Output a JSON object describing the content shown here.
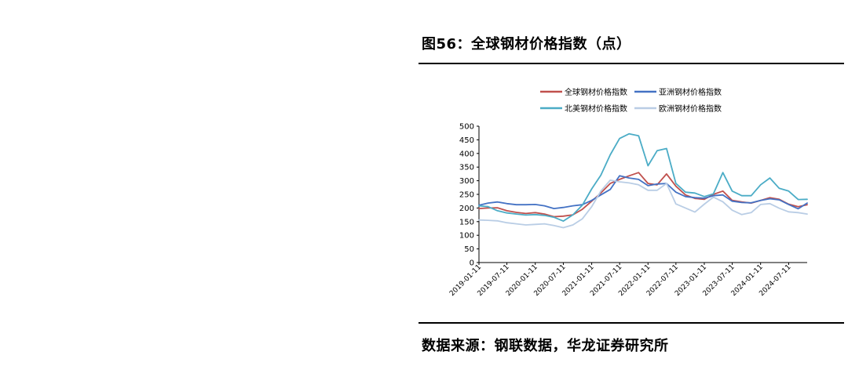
{
  "figure": {
    "title": "图56：全球钢材价格指数（点）",
    "source": "数据来源：钢联数据，华龙证券研究所"
  },
  "chart_data": {
    "type": "line",
    "title": "",
    "xlabel": "",
    "ylabel": "",
    "ylim": [
      0,
      500
    ],
    "yticks": [
      0,
      50,
      100,
      150,
      200,
      250,
      300,
      350,
      400,
      450,
      500
    ],
    "xlim": [
      "2019-01-11",
      "2024-11-08"
    ],
    "xticks": [
      "2019-01-11",
      "2019-07-11",
      "2020-01-11",
      "2020-07-11",
      "2021-01-11",
      "2021-07-11",
      "2022-01-11",
      "2022-07-11",
      "2023-01-11",
      "2023-07-11",
      "2024-01-11",
      "2024-07-11"
    ],
    "grid": false,
    "legend_position": "top",
    "x": [
      "2019-01-11",
      "2019-03-11",
      "2019-05-11",
      "2019-07-11",
      "2019-09-11",
      "2019-11-11",
      "2020-01-11",
      "2020-03-11",
      "2020-05-11",
      "2020-07-11",
      "2020-09-11",
      "2020-11-11",
      "2021-01-11",
      "2021-03-11",
      "2021-05-11",
      "2021-07-11",
      "2021-09-11",
      "2021-11-11",
      "2022-01-11",
      "2022-03-11",
      "2022-05-11",
      "2022-07-11",
      "2022-09-11",
      "2022-11-11",
      "2023-01-11",
      "2023-03-11",
      "2023-05-11",
      "2023-07-11",
      "2023-09-11",
      "2023-11-11",
      "2024-01-11",
      "2024-03-11",
      "2024-05-11",
      "2024-07-11",
      "2024-09-11",
      "2024-11-08"
    ],
    "series": [
      {
        "name": "全球钢材价格指数",
        "color": "#c0504d",
        "values": [
          198,
          200,
          201,
          190,
          184,
          180,
          183,
          178,
          168,
          170,
          175,
          195,
          225,
          255,
          290,
          305,
          318,
          330,
          290,
          285,
          325,
          280,
          248,
          235,
          232,
          250,
          262,
          228,
          222,
          218,
          228,
          238,
          232,
          214,
          205,
          212
        ]
      },
      {
        "name": "亚洲钢材价格指数",
        "color": "#4472c4",
        "values": [
          210,
          218,
          222,
          216,
          212,
          212,
          213,
          208,
          198,
          202,
          208,
          212,
          228,
          248,
          268,
          318,
          310,
          305,
          282,
          288,
          290,
          258,
          242,
          238,
          236,
          245,
          248,
          225,
          220,
          219,
          228,
          234,
          230,
          213,
          197,
          218
        ]
      },
      {
        "name": "北美钢材价格指数",
        "color": "#4bacc6",
        "values": [
          208,
          205,
          190,
          182,
          178,
          174,
          176,
          173,
          166,
          152,
          175,
          210,
          270,
          320,
          395,
          455,
          472,
          465,
          355,
          410,
          418,
          290,
          258,
          255,
          242,
          252,
          330,
          262,
          245,
          245,
          285,
          310,
          272,
          262,
          231,
          232
        ]
      },
      {
        "name": "欧洲钢材价格指数",
        "color": "#b9cde5",
        "values": [
          156,
          155,
          153,
          146,
          142,
          138,
          140,
          142,
          136,
          128,
          138,
          160,
          205,
          262,
          302,
          296,
          292,
          285,
          265,
          265,
          290,
          215,
          200,
          185,
          214,
          240,
          223,
          192,
          176,
          183,
          213,
          216,
          199,
          186,
          183,
          178
        ]
      }
    ]
  }
}
